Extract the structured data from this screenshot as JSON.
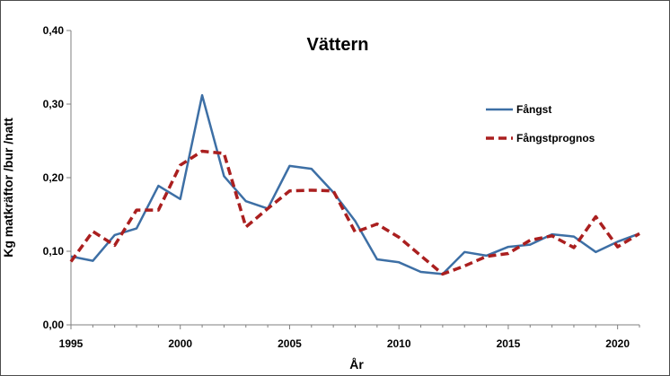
{
  "chart_data": {
    "type": "line",
    "title": "Vättern",
    "xlabel": "År",
    "ylabel": "Kg matkräftor /bur /natt",
    "xlim": [
      1995,
      2021
    ],
    "ylim": [
      0,
      0.4
    ],
    "x_ticks": [
      1995,
      2000,
      2005,
      2010,
      2015,
      2020
    ],
    "x_tick_labels": [
      "1995",
      "2000",
      "2005",
      "2010",
      "2015",
      "2020"
    ],
    "y_ticks": [
      0,
      0.1,
      0.2,
      0.3,
      0.4
    ],
    "y_tick_labels": [
      "0,00",
      "0,10",
      "0,20",
      "0,30",
      "0,40"
    ],
    "grid": false,
    "legend_position": "right",
    "x": [
      1995,
      1996,
      1997,
      1998,
      1999,
      2000,
      2001,
      2002,
      2003,
      2004,
      2005,
      2006,
      2007,
      2008,
      2009,
      2010,
      2011,
      2012,
      2013,
      2014,
      2015,
      2016,
      2017,
      2018,
      2019,
      2020,
      2021
    ],
    "series": [
      {
        "name": "Fångst",
        "color": "#3d6fa5",
        "style": "solid",
        "values": [
          0.093,
          0.087,
          0.122,
          0.131,
          0.189,
          0.171,
          0.312,
          0.202,
          0.168,
          0.158,
          0.216,
          0.212,
          0.18,
          0.141,
          0.089,
          0.085,
          0.072,
          0.069,
          0.099,
          0.094,
          0.106,
          0.109,
          0.123,
          0.12,
          0.099,
          0.113,
          0.124
        ]
      },
      {
        "name": "Fångstprognos",
        "color": "#aa1f1f",
        "style": "dashed",
        "values": [
          0.086,
          0.127,
          0.108,
          0.156,
          0.156,
          0.217,
          0.236,
          0.233,
          0.133,
          0.158,
          0.182,
          0.183,
          0.182,
          0.126,
          0.137,
          0.119,
          0.094,
          0.069,
          0.08,
          0.093,
          0.097,
          0.115,
          0.121,
          0.105,
          0.147,
          0.106,
          0.124
        ]
      }
    ]
  }
}
